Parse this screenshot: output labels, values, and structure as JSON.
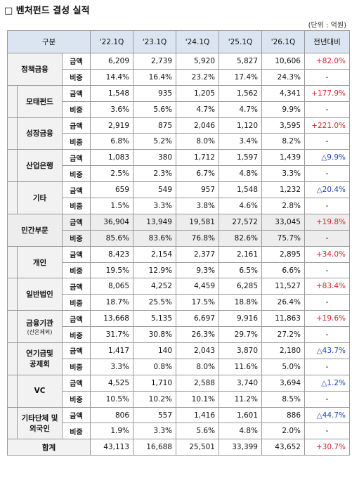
{
  "header": {
    "title": "□ 벤처펀드 결성 실적",
    "unit": "(단위 : 억원)"
  },
  "table": {
    "columns": [
      "구분",
      "'22.1Q",
      "'23.1Q",
      "'24.1Q",
      "'25.1Q",
      "'26.1Q",
      "전년대비"
    ],
    "groups": [
      {
        "label_lines": [
          "정책금융"
        ],
        "level": 1,
        "rows": [
          {
            "kind": "금액",
            "values": [
              "6,209",
              "2,739",
              "5,920",
              "5,827",
              "10,606"
            ],
            "change": "+82.0%"
          },
          {
            "kind": "비중",
            "values": [
              "14.4%",
              "16.4%",
              "23.2%",
              "17.4%",
              "24.3%"
            ],
            "change": "-"
          }
        ]
      },
      {
        "label_lines": [
          "모태펀드"
        ],
        "level": 2,
        "rows": [
          {
            "kind": "금액",
            "values": [
              "1,548",
              "935",
              "1,205",
              "1,562",
              "4,341"
            ],
            "change": "+177.9%"
          },
          {
            "kind": "비중",
            "values": [
              "3.6%",
              "5.6%",
              "4.7%",
              "4.7%",
              "9.9%"
            ],
            "change": "-"
          }
        ]
      },
      {
        "label_lines": [
          "성장금융"
        ],
        "level": 2,
        "rows": [
          {
            "kind": "금액",
            "values": [
              "2,919",
              "875",
              "2,046",
              "1,120",
              "3,595"
            ],
            "change": "+221.0%"
          },
          {
            "kind": "비중",
            "values": [
              "6.8%",
              "5.2%",
              "8.0%",
              "3.4%",
              "8.2%"
            ],
            "change": "-"
          }
        ]
      },
      {
        "label_lines": [
          "산업은행"
        ],
        "level": 2,
        "rows": [
          {
            "kind": "금액",
            "values": [
              "1,083",
              "380",
              "1,712",
              "1,597",
              "1,439"
            ],
            "change": "△9.9%"
          },
          {
            "kind": "비중",
            "values": [
              "2.5%",
              "2.3%",
              "6.7%",
              "4.8%",
              "3.3%"
            ],
            "change": "-"
          }
        ]
      },
      {
        "label_lines": [
          "기타"
        ],
        "level": 2,
        "rows": [
          {
            "kind": "금액",
            "values": [
              "659",
              "549",
              "957",
              "1,548",
              "1,232"
            ],
            "change": "△20.4%"
          },
          {
            "kind": "비중",
            "values": [
              "1.5%",
              "3.3%",
              "3.8%",
              "4.6%",
              "2.8%"
            ],
            "change": "-"
          }
        ]
      },
      {
        "label_lines": [
          "민간부문"
        ],
        "level": 1,
        "highlight": true,
        "rows": [
          {
            "kind": "금액",
            "values": [
              "36,904",
              "13,949",
              "19,581",
              "27,572",
              "33,045"
            ],
            "change": "+19.8%"
          },
          {
            "kind": "비중",
            "values": [
              "85.6%",
              "83.6%",
              "76.8%",
              "82.6%",
              "75.7%"
            ],
            "change": "-"
          }
        ]
      },
      {
        "label_lines": [
          "개인"
        ],
        "level": 2,
        "rows": [
          {
            "kind": "금액",
            "values": [
              "8,423",
              "2,154",
              "2,377",
              "2,161",
              "2,895"
            ],
            "change": "+34.0%"
          },
          {
            "kind": "비중",
            "values": [
              "19.5%",
              "12.9%",
              "9.3%",
              "6.5%",
              "6.6%"
            ],
            "change": "-"
          }
        ]
      },
      {
        "label_lines": [
          "일반법인"
        ],
        "level": 2,
        "rows": [
          {
            "kind": "금액",
            "values": [
              "8,065",
              "4,252",
              "4,459",
              "6,285",
              "11,527"
            ],
            "change": "+83.4%"
          },
          {
            "kind": "비중",
            "values": [
              "18.7%",
              "25.5%",
              "17.5%",
              "18.8%",
              "26.4%"
            ],
            "change": "-"
          }
        ]
      },
      {
        "label_lines": [
          "금융기관"
        ],
        "note": "(산은제외)",
        "level": 2,
        "rows": [
          {
            "kind": "금액",
            "values": [
              "13,668",
              "5,135",
              "6,697",
              "9,916",
              "11,863"
            ],
            "change": "+19.6%"
          },
          {
            "kind": "비중",
            "values": [
              "31.7%",
              "30.8%",
              "26.3%",
              "29.7%",
              "27.2%"
            ],
            "change": "-"
          }
        ]
      },
      {
        "label_lines": [
          "연기금및",
          "공제회"
        ],
        "level": 2,
        "rows": [
          {
            "kind": "금액",
            "values": [
              "1,417",
              "140",
              "2,043",
              "3,870",
              "2,180"
            ],
            "change": "△43.7%"
          },
          {
            "kind": "비중",
            "values": [
              "3.3%",
              "0.8%",
              "8.0%",
              "11.6%",
              "5.0%"
            ],
            "change": "-"
          }
        ]
      },
      {
        "label_lines": [
          "VC"
        ],
        "level": 2,
        "rows": [
          {
            "kind": "금액",
            "values": [
              "4,525",
              "1,710",
              "2,588",
              "3,740",
              "3,694"
            ],
            "change": "△1.2%"
          },
          {
            "kind": "비중",
            "values": [
              "10.5%",
              "10.2%",
              "10.1%",
              "11.2%",
              "8.5%"
            ],
            "change": "-"
          }
        ]
      },
      {
        "label_lines": [
          "기타단체 및",
          "외국인"
        ],
        "level": 2,
        "rows": [
          {
            "kind": "금액",
            "values": [
              "806",
              "557",
              "1,416",
              "1,601",
              "886"
            ],
            "change": "△44.7%"
          },
          {
            "kind": "비중",
            "values": [
              "1.9%",
              "3.3%",
              "5.6%",
              "4.8%",
              "2.0%"
            ],
            "change": "-"
          }
        ]
      }
    ],
    "total": {
      "label": "합계",
      "values": [
        "43,113",
        "16,688",
        "25,501",
        "33,399",
        "43,652"
      ],
      "change": "+30.7%"
    }
  }
}
